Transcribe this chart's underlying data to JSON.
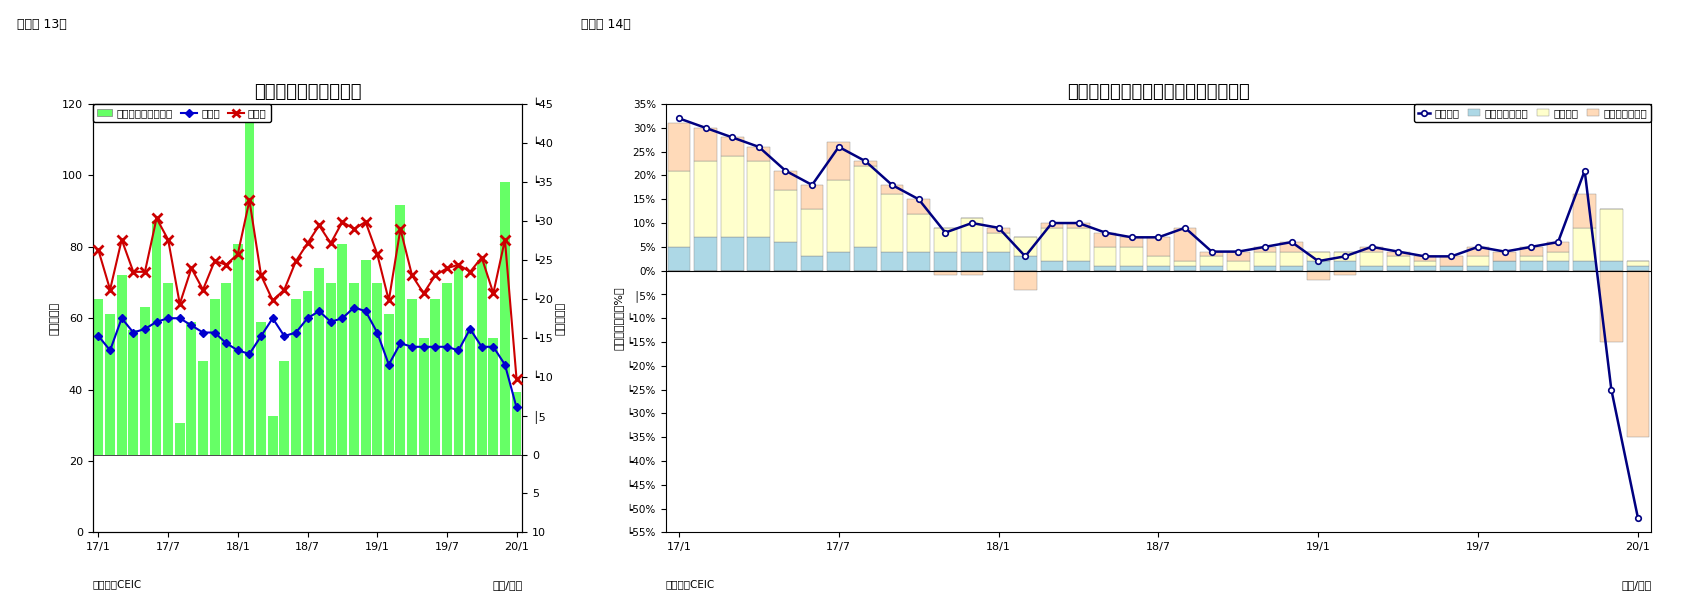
{
  "chart13": {
    "title": "フィリピンの貿易収支",
    "ylabel_left": "（億ドル）",
    "ylabel_right": "（億ドル）",
    "xlabel": "（年/月）",
    "source": "（資料）CEIC",
    "fig_label": "（図表 13）",
    "x_ticks_labels": [
      "17/1",
      "17/7",
      "18/1",
      "18/7",
      "19/1",
      "19/7",
      "20/1"
    ],
    "x_tick_positions": [
      0,
      6,
      12,
      18,
      24,
      30,
      36
    ],
    "ylim_left": [
      0,
      120
    ],
    "ylim_right": [
      10,
      -45
    ],
    "yticks_left": [
      0,
      20,
      40,
      60,
      80,
      100,
      120
    ],
    "yticks_right": [
      10,
      5,
      0,
      -5,
      -10,
      -15,
      -20,
      -25,
      -30,
      -35,
      -40,
      -45
    ],
    "yticks_right_labels": [
      "10",
      "5",
      "0",
      "│5",
      "┕10",
      "┕15",
      "┕20",
      "┕25",
      "┕30",
      "┕35",
      "┕40",
      "┕45"
    ],
    "bar_color": "#66FF66",
    "bar_values": [
      -20,
      -18,
      -23,
      -16,
      -19,
      -30,
      -22,
      -4,
      -17,
      -12,
      -20,
      -22,
      -27,
      -43,
      -17,
      -5,
      -12,
      -20,
      -21,
      -24,
      -22,
      -27,
      -22,
      -25,
      -22,
      -18,
      -32,
      -20,
      -15,
      -20,
      -22,
      -24,
      -16,
      -25,
      -15,
      -35,
      -8
    ],
    "export_values": [
      55,
      51,
      60,
      56,
      57,
      59,
      60,
      60,
      58,
      56,
      56,
      53,
      51,
      50,
      55,
      60,
      55,
      56,
      60,
      62,
      59,
      60,
      63,
      62,
      56,
      47,
      53,
      52,
      52,
      52,
      52,
      51,
      57,
      52,
      52,
      47,
      35
    ],
    "import_values": [
      79,
      68,
      82,
      73,
      73,
      88,
      82,
      64,
      74,
      68,
      76,
      75,
      78,
      93,
      72,
      65,
      68,
      76,
      81,
      86,
      81,
      87,
      85,
      87,
      78,
      65,
      85,
      72,
      67,
      72,
      74,
      75,
      73,
      77,
      67,
      82,
      43
    ],
    "legend_labels": [
      "貿易収支（右目盛）",
      "輸出額",
      "輸入額"
    ]
  },
  "chart14": {
    "title": "フィリピン　輸出の伸び率（品目別）",
    "ylabel": "（前年同期比，%）",
    "xlabel": "（年/月）",
    "source": "（資料）CEIC",
    "fig_label": "（図表 14）",
    "x_ticks_labels": [
      "17/1",
      "17/7",
      "18/1",
      "18/7",
      "19/1",
      "19/7",
      "20/1"
    ],
    "x_tick_positions": [
      0,
      6,
      12,
      18,
      24,
      30,
      36
    ],
    "ylim_top": 0.35,
    "ylim_bottom": -0.55,
    "yticks": [
      0.35,
      0.3,
      0.25,
      0.2,
      0.15,
      0.1,
      0.05,
      0.0,
      -0.05,
      -0.1,
      -0.15,
      -0.2,
      -0.25,
      -0.3,
      -0.35,
      -0.4,
      -0.45,
      -0.5,
      -0.55
    ],
    "yticks_labels": [
      "35%",
      "30%",
      "25%",
      "20%",
      "15%",
      "10%",
      "5%",
      "0%",
      "│5%",
      "┕10%",
      "┕15%",
      "┕20%",
      "┕25%",
      "┕30%",
      "┕35%",
      "┕40%",
      "┕45%",
      "┕50%",
      "┕55%"
    ],
    "primary_color": "#ADD8E6",
    "electronic_color": "#FFFFCC",
    "other_color": "#FFDAB9",
    "line_color": "#000080",
    "primary_values": [
      0.05,
      0.07,
      0.07,
      0.07,
      0.06,
      0.03,
      0.04,
      0.05,
      0.04,
      0.04,
      0.04,
      0.04,
      0.04,
      0.03,
      0.02,
      0.02,
      0.01,
      0.01,
      0.01,
      0.01,
      0.01,
      0.0,
      0.01,
      0.01,
      0.02,
      0.02,
      0.01,
      0.01,
      0.01,
      0.01,
      0.01,
      0.02,
      0.02,
      0.02,
      0.02,
      0.02,
      0.01
    ],
    "electronic_values": [
      0.16,
      0.16,
      0.17,
      0.16,
      0.11,
      0.1,
      0.15,
      0.17,
      0.12,
      0.08,
      0.05,
      0.07,
      0.04,
      0.04,
      0.07,
      0.07,
      0.04,
      0.04,
      0.02,
      0.01,
      0.02,
      0.02,
      0.03,
      0.03,
      0.02,
      0.02,
      0.03,
      0.02,
      0.01,
      0.0,
      0.02,
      0.0,
      0.01,
      0.02,
      0.07,
      0.11,
      0.01
    ],
    "other_values": [
      0.1,
      0.07,
      0.04,
      0.03,
      0.04,
      0.05,
      0.08,
      0.01,
      0.02,
      0.03,
      -0.01,
      -0.01,
      0.01,
      -0.04,
      0.01,
      0.01,
      0.03,
      0.02,
      0.04,
      0.07,
      0.01,
      0.02,
      0.01,
      0.02,
      -0.02,
      -0.01,
      0.01,
      0.01,
      0.01,
      0.02,
      0.02,
      0.02,
      0.02,
      0.02,
      0.07,
      -0.15,
      -0.35
    ],
    "total_values": [
      0.32,
      0.3,
      0.28,
      0.26,
      0.21,
      0.18,
      0.26,
      0.23,
      0.18,
      0.15,
      0.08,
      0.1,
      0.09,
      0.03,
      0.1,
      0.1,
      0.08,
      0.07,
      0.07,
      0.09,
      0.04,
      0.04,
      0.05,
      0.06,
      0.02,
      0.03,
      0.05,
      0.04,
      0.03,
      0.03,
      0.05,
      0.04,
      0.05,
      0.06,
      0.21,
      -0.25,
      -0.52
    ],
    "legend_labels": [
      "一次産品・燃料",
      "電子製品",
      "その他製品など",
      "輸出合計"
    ]
  }
}
